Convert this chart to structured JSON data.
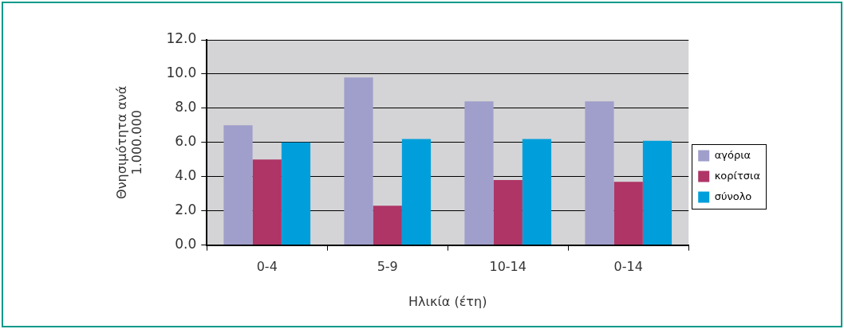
{
  "chart_data": {
    "type": "bar",
    "xlabel": "Ηλικία (έτη)",
    "ylabel": "Θνησιμότητα ανά 1.000.000",
    "categories": [
      "0-4",
      "5-9",
      "10-14",
      "0-14"
    ],
    "series": [
      {
        "name": "αγόρια",
        "color": "#a09fcb",
        "values": [
          7.0,
          9.8,
          8.4,
          8.4
        ]
      },
      {
        "name": "κορίτσια",
        "color": "#ae3566",
        "values": [
          5.0,
          2.3,
          3.8,
          3.7
        ]
      },
      {
        "name": "σύνολο",
        "color": "#009fdb",
        "values": [
          6.0,
          6.2,
          6.2,
          6.1
        ]
      }
    ],
    "ylim": [
      0,
      12
    ],
    "yticks": [
      {
        "value": 0,
        "label": "0.0"
      },
      {
        "value": 2,
        "label": "2.0"
      },
      {
        "value": 4,
        "label": "4.0"
      },
      {
        "value": 6,
        "label": "6.0"
      },
      {
        "value": 8,
        "label": "8.0"
      },
      {
        "value": 10,
        "label": "10.0"
      },
      {
        "value": 12,
        "label": "12.0"
      }
    ],
    "grid": "y",
    "legend": "right"
  }
}
